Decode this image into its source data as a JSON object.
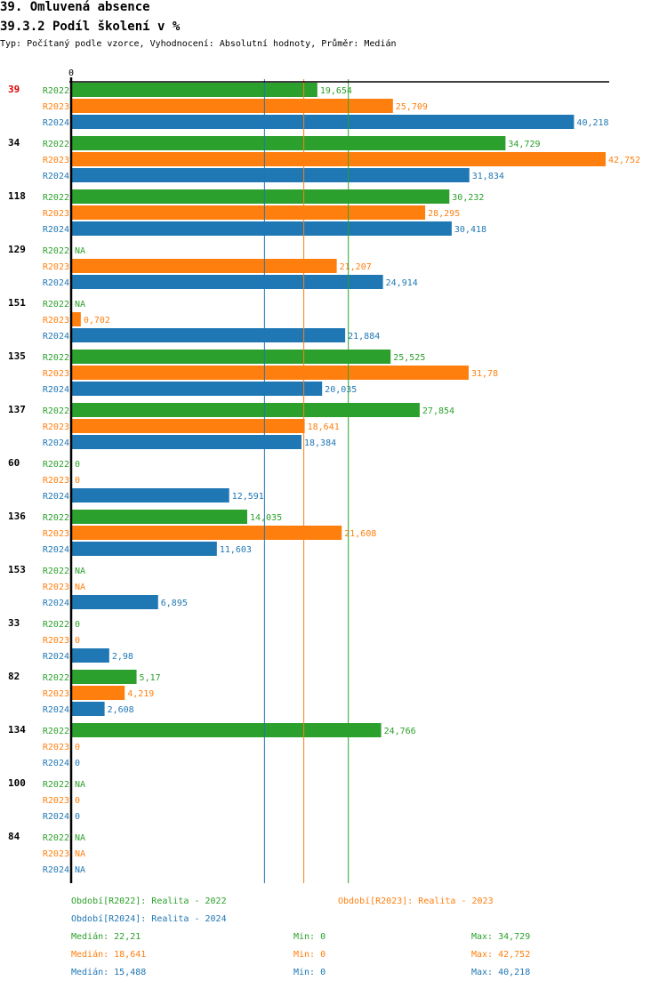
{
  "header": {
    "title": "39. Omluvená absence",
    "subtitle": "39.3.2 Podíl školení v %",
    "meta": "Typ: Počítaný podle vzorce, Vyhodnocení: Absolutní hodnoty, Průměr: Medián"
  },
  "colors": {
    "R2022": "#2ca02c",
    "R2023": "#ff7f0e",
    "R2024": "#1f77b4",
    "highlight": "#e00000",
    "axis": "#000000"
  },
  "chart_data": {
    "type": "bar",
    "orientation": "horizontal",
    "title": "39.3.2 Podíl školení v %",
    "xlabel": "",
    "ylabel": "",
    "x_tick_labels": [
      "0"
    ],
    "xlim": [
      0,
      42.752
    ],
    "grid": false,
    "highlighted_category": "39",
    "categories": [
      "39",
      "34",
      "118",
      "129",
      "151",
      "135",
      "137",
      "60",
      "136",
      "153",
      "33",
      "82",
      "134",
      "100",
      "84"
    ],
    "series": [
      {
        "name": "R2022",
        "values": [
          19.654,
          34.729,
          30.232,
          null,
          null,
          25.525,
          27.854,
          0,
          14.035,
          null,
          0,
          5.17,
          24.766,
          null,
          null
        ],
        "labels": [
          "19,654",
          "34,729",
          "30,232",
          "NA",
          "NA",
          "25,525",
          "27,854",
          "0",
          "14,035",
          "NA",
          "0",
          "5,17",
          "24,766",
          "NA",
          "NA"
        ]
      },
      {
        "name": "R2023",
        "values": [
          25.709,
          42.752,
          28.295,
          21.207,
          0.702,
          31.78,
          18.641,
          0,
          21.608,
          null,
          0,
          4.219,
          0,
          0,
          null
        ],
        "labels": [
          "25,709",
          "42,752",
          "28,295",
          "21,207",
          "0,702",
          "31,78",
          "18,641",
          "0",
          "21,608",
          "NA",
          "0",
          "4,219",
          "0",
          "0",
          "NA"
        ]
      },
      {
        "name": "R2024",
        "values": [
          40.218,
          31.834,
          30.418,
          24.914,
          21.884,
          20.035,
          18.384,
          12.591,
          11.603,
          6.895,
          2.98,
          2.608,
          0,
          0,
          null
        ],
        "labels": [
          "40,218",
          "31,834",
          "30,418",
          "24,914",
          "21,884",
          "20,035",
          "18,384",
          "12,591",
          "11,603",
          "6,895",
          "2,98",
          "2,608",
          "0",
          "0",
          "NA"
        ]
      }
    ],
    "medians": [
      {
        "series": "R2022",
        "value": 22.21
      },
      {
        "series": "R2023",
        "value": 18.641
      },
      {
        "series": "R2024",
        "value": 15.488
      }
    ]
  },
  "legend": {
    "periods": [
      {
        "series": "R2022",
        "text": "Období[R2022]: Realita - 2022"
      },
      {
        "series": "R2023",
        "text": "Období[R2023]: Realita - 2023"
      },
      {
        "series": "R2024",
        "text": "Období[R2024]: Realita - 2024"
      }
    ],
    "stats": [
      {
        "series": "R2022",
        "median": "Medián: 22,21",
        "min": "Min: 0",
        "max": "Max: 34,729"
      },
      {
        "series": "R2023",
        "median": "Medián: 18,641",
        "min": "Min: 0",
        "max": "Max: 42,752"
      },
      {
        "series": "R2024",
        "median": "Medián: 15,488",
        "min": "Min: 0",
        "max": "Max: 40,218"
      }
    ]
  }
}
